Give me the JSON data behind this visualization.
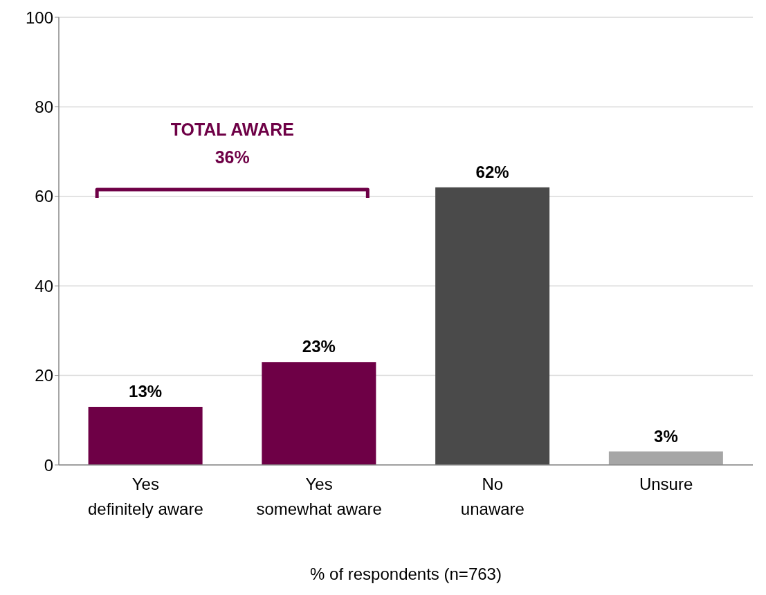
{
  "chart_data": {
    "type": "bar",
    "categories": [
      "Yes\ndefinitely aware",
      "Yes\nsomewhat aware",
      "No\nunaware",
      "Unsure"
    ],
    "values": [
      13,
      23,
      62,
      3
    ],
    "colors": [
      "#6e0046",
      "#6e0046",
      "#4a4a4a",
      "#a6a6a6"
    ],
    "value_labels": [
      "13%",
      "23%",
      "62%",
      "3%"
    ],
    "xlabel": "% of respondents (n=763)",
    "annotations": [
      "TOTAL AWARE\n36%"
    ],
    "ylim": [
      0,
      100
    ],
    "yticks": [
      0,
      20,
      40,
      60,
      80,
      100
    ],
    "grid": "y"
  }
}
